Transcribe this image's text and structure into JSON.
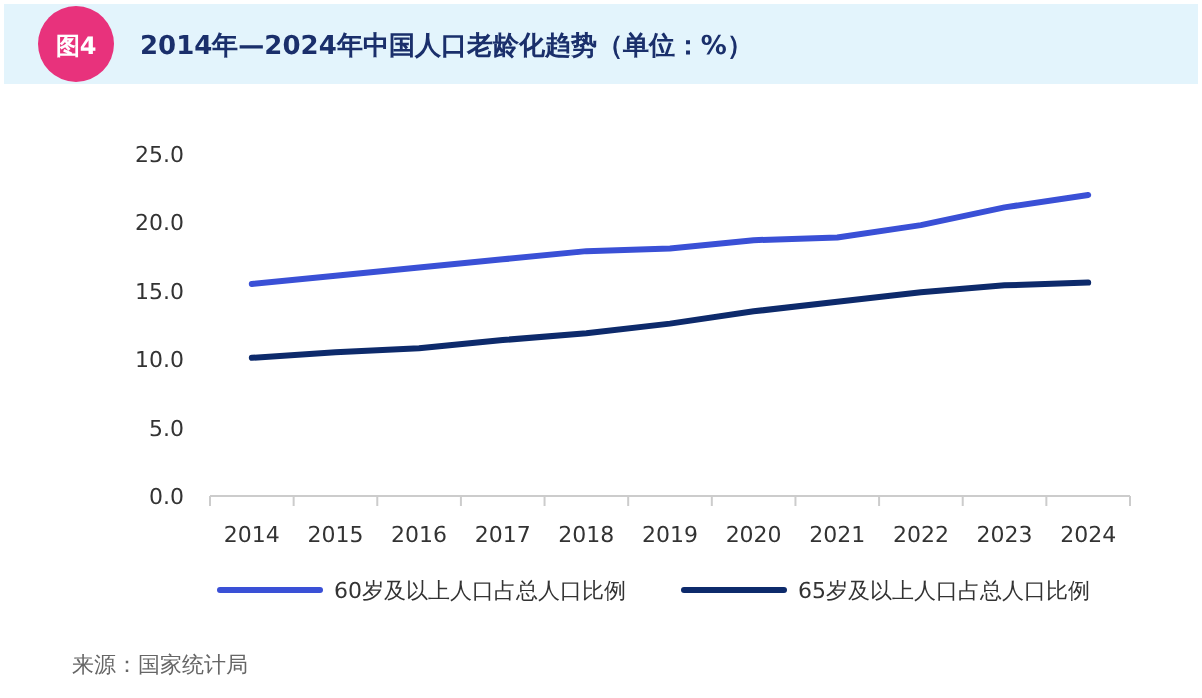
{
  "chart_data": {
    "type": "line",
    "title": "2014年—2024年中国人口老龄化趋势（单位：%）",
    "annotations": [
      "图4",
      "来源：国家统计局"
    ],
    "categories": [
      "2014",
      "2015",
      "2016",
      "2017",
      "2018",
      "2019",
      "2020",
      "2021",
      "2022",
      "2023",
      "2024"
    ],
    "series": [
      {
        "name": "60岁及以上人口占总人口比例",
        "color": "#3a50d6",
        "values": [
          15.5,
          16.1,
          16.7,
          17.3,
          17.9,
          18.1,
          18.7,
          18.9,
          19.8,
          21.1,
          22.0
        ]
      },
      {
        "name": "65岁及以上人口占总人口比例",
        "color": "#0d2a6b",
        "values": [
          10.1,
          10.5,
          10.8,
          11.4,
          11.9,
          12.6,
          13.5,
          14.2,
          14.9,
          15.4,
          15.6
        ]
      }
    ],
    "ylim": [
      0,
      25
    ],
    "yticks": [
      {
        "value": 0,
        "label": "0.0"
      },
      {
        "value": 5,
        "label": "5.0"
      },
      {
        "value": 10,
        "label": "10.0"
      },
      {
        "value": 15,
        "label": "15.0"
      },
      {
        "value": 20,
        "label": "20.0"
      },
      {
        "value": 25,
        "label": "25.0"
      }
    ],
    "grid": false,
    "legend": "bottom",
    "marker": "none",
    "line_style": "solid"
  }
}
